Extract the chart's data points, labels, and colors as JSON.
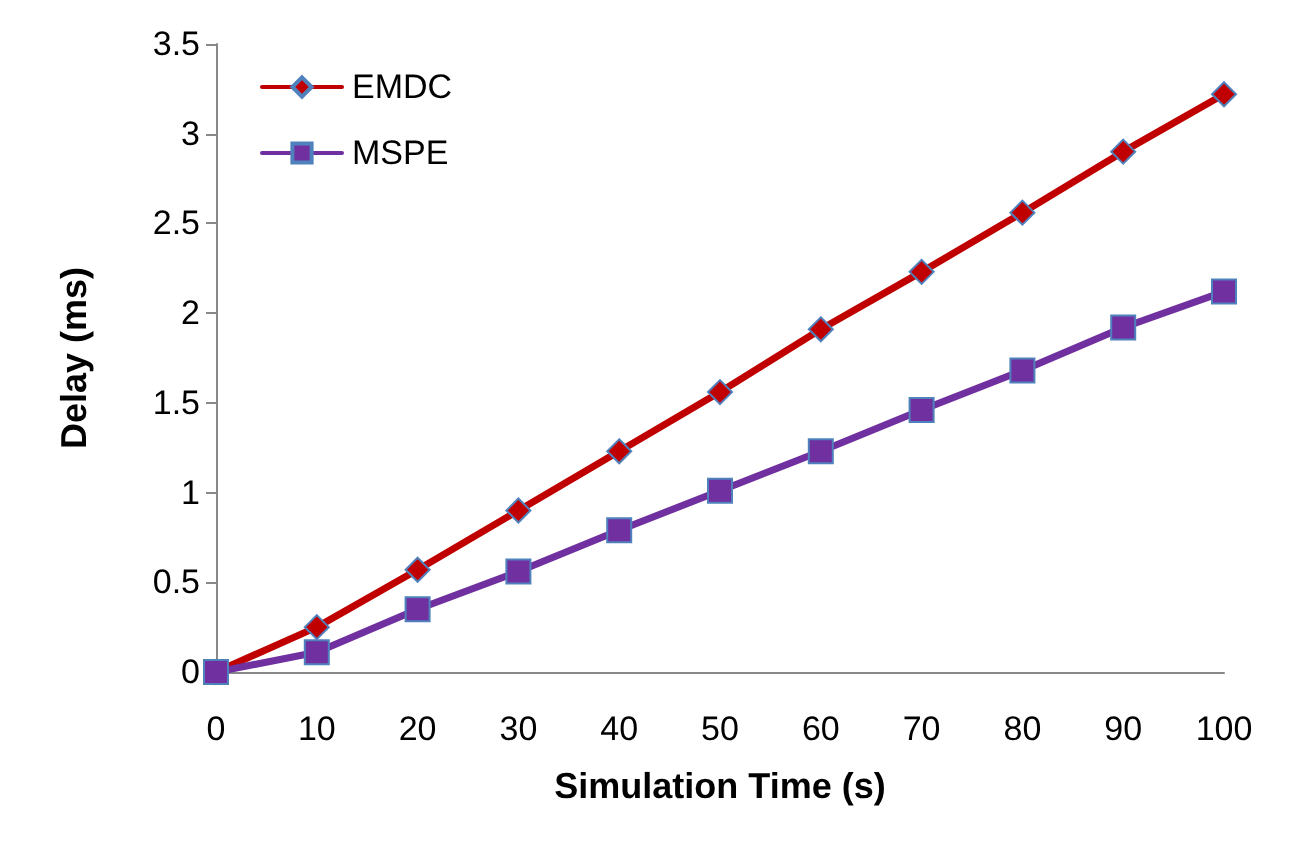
{
  "chart_data": {
    "type": "line",
    "xlabel": "Simulation Time (s)",
    "ylabel": "Delay (ms)",
    "categories": [
      "0",
      "10",
      "20",
      "30",
      "40",
      "50",
      "60",
      "70",
      "80",
      "90",
      "100"
    ],
    "series": [
      {
        "name": "EMDC",
        "color": "#c00000",
        "marker": "diamond",
        "values": [
          0,
          0.25,
          0.57,
          0.9,
          1.23,
          1.56,
          1.91,
          2.23,
          2.56,
          2.9,
          3.22
        ]
      },
      {
        "name": "MSPE",
        "color": "#7030a0",
        "marker": "square",
        "values": [
          0,
          0.11,
          0.35,
          0.56,
          0.79,
          1.01,
          1.23,
          1.46,
          1.68,
          1.92,
          2.12
        ]
      }
    ],
    "ylim": [
      0,
      3.5
    ],
    "yticks": [
      0,
      0.5,
      1,
      1.5,
      2,
      2.5,
      3,
      3.5
    ],
    "grid": false,
    "legend": "top left",
    "line_style": "solid"
  }
}
